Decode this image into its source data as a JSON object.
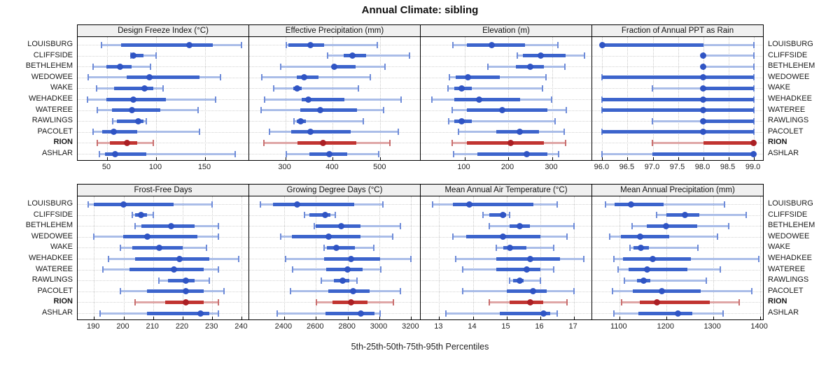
{
  "title": "Annual Climate: sibling",
  "footer": "5th-25th-50th-75th-95th Percentiles",
  "locations": [
    "LOUISBURG",
    "CLIFFSIDE",
    "BETHLEHEM",
    "WEDOWEE",
    "WAKE",
    "WEHADKEE",
    "WATEREE",
    "RAWLINGS",
    "PACOLET",
    "RION",
    "ASHLAR"
  ],
  "highlight_location": "RION",
  "colors": {
    "blue_light": "#aabde8",
    "blue_cap": "#6f8cd9",
    "blue_dark": "#3c64cc",
    "blue_dot": "#2f54c4",
    "red_light": "#dfa6a6",
    "red_cap": "#c96f6f",
    "red_dark": "#c13431",
    "red_dot": "#ab1f24",
    "grid": "#c9c9c9",
    "header_bg": "#f0f0f0",
    "border": "#000000",
    "text": "#1a1a1a"
  },
  "chart_data": [
    {
      "type": "percentile-interval",
      "row": 0,
      "col": 0,
      "title": "Design Freeze Index (°C)",
      "xlim": [
        20,
        195
      ],
      "ticks": [
        50,
        100,
        150
      ],
      "decimals": 0,
      "percentile_labels": [
        "5th",
        "25th",
        "50th",
        "75th",
        "95th"
      ],
      "values": [
        [
          44,
          64,
          134,
          158,
          187
        ],
        [
          74,
          76,
          77,
          87,
          100
        ],
        [
          36,
          49,
          63,
          75,
          94
        ],
        [
          31,
          70,
          93,
          144,
          166
        ],
        [
          39,
          57,
          88,
          97,
          107
        ],
        [
          30,
          49,
          77,
          110,
          161
        ],
        [
          40,
          55,
          75,
          104,
          143
        ],
        [
          56,
          60,
          82,
          87,
          90
        ],
        [
          36,
          45,
          57,
          81,
          144
        ],
        [
          40,
          53,
          70,
          81,
          97
        ],
        [
          42,
          48,
          58,
          90,
          181
        ]
      ]
    },
    {
      "type": "percentile-interval",
      "row": 0,
      "col": 1,
      "title": "Effective Precipitation (mm)",
      "xlim": [
        224,
        585
      ],
      "ticks": [
        300,
        400,
        500
      ],
      "decimals": 0,
      "percentile_labels": [
        "5th",
        "25th",
        "50th",
        "75th",
        "95th"
      ],
      "values": [
        [
          302,
          307,
          353,
          382,
          493
        ],
        [
          389,
          423,
          442,
          470,
          562
        ],
        [
          290,
          398,
          403,
          448,
          510
        ],
        [
          250,
          324,
          339,
          370,
          479
        ],
        [
          276,
          317,
          325,
          334,
          454
        ],
        [
          257,
          334,
          348,
          425,
          544
        ],
        [
          249,
          331,
          374,
          451,
          507
        ],
        [
          319,
          324,
          332,
          343,
          464
        ],
        [
          266,
          312,
          353,
          437,
          538
        ],
        [
          255,
          325,
          379,
          450,
          520
        ],
        [
          302,
          350,
          393,
          430,
          497
        ]
      ]
    },
    {
      "type": "percentile-interval",
      "row": 0,
      "col": 2,
      "title": "Elevation (m)",
      "xlim": [
        0,
        392
      ],
      "ticks": [
        100,
        200,
        300
      ],
      "decimals": 0,
      "percentile_labels": [
        "5th",
        "25th",
        "50th",
        "75th",
        "95th"
      ],
      "values": [
        [
          74,
          106,
          162,
          238,
          314
        ],
        [
          220,
          233,
          274,
          331,
          375
        ],
        [
          154,
          217,
          250,
          281,
          329
        ],
        [
          66,
          80,
          108,
          181,
          286
        ],
        [
          63,
          77,
          93,
          117,
          279
        ],
        [
          26,
          77,
          133,
          227,
          299
        ],
        [
          72,
          106,
          186,
          289,
          333
        ],
        [
          64,
          77,
          93,
          117,
          307
        ],
        [
          87,
          173,
          227,
          270,
          328
        ],
        [
          72,
          106,
          206,
          281,
          331
        ],
        [
          75,
          130,
          242,
          289,
          315
        ]
      ]
    },
    {
      "type": "percentile-interval",
      "row": 0,
      "col": 3,
      "title": "Fraction of Annual PPT as Rain",
      "xlim": [
        95.8,
        99.2
      ],
      "ticks": [
        96.0,
        96.5,
        97.0,
        97.5,
        98.0,
        98.5,
        99.0
      ],
      "decimals": 1,
      "percentile_labels": [
        "5th",
        "25th",
        "50th",
        "75th",
        "95th"
      ],
      "values": [
        [
          96,
          96,
          96,
          98,
          99
        ],
        [
          98,
          98,
          98,
          98,
          99
        ],
        [
          98,
          98,
          98,
          98,
          99
        ],
        [
          96,
          96,
          98,
          99,
          99
        ],
        [
          97,
          98,
          98,
          99,
          99
        ],
        [
          96,
          96,
          98,
          99,
          99
        ],
        [
          96,
          96,
          98,
          99,
          99
        ],
        [
          97,
          98,
          98,
          99,
          99
        ],
        [
          96,
          96,
          98,
          99,
          99
        ],
        [
          97,
          98,
          99,
          99,
          99
        ],
        [
          96,
          97,
          99,
          99,
          99
        ]
      ]
    },
    {
      "type": "percentile-interval",
      "row": 1,
      "col": 0,
      "title": "Frost-Free Days",
      "xlim": [
        184.5,
        242.5
      ],
      "ticks": [
        190,
        200,
        210,
        220,
        230,
        240
      ],
      "decimals": 0,
      "percentile_labels": [
        "5th",
        "25th",
        "50th",
        "75th",
        "95th"
      ],
      "values": [
        [
          188,
          190,
          200,
          217,
          230
        ],
        [
          203,
          204,
          206,
          208,
          210
        ],
        [
          204,
          206,
          216,
          224,
          232
        ],
        [
          190,
          200,
          208,
          225,
          232
        ],
        [
          199,
          203,
          212,
          220,
          228
        ],
        [
          195,
          204,
          219,
          229,
          239
        ],
        [
          193,
          202,
          217,
          227,
          232
        ],
        [
          212,
          215,
          221,
          224,
          229
        ],
        [
          199,
          208,
          221,
          227,
          234
        ],
        [
          204,
          214,
          221,
          227,
          232
        ],
        [
          192,
          208,
          226,
          229,
          232
        ]
      ]
    },
    {
      "type": "percentile-interval",
      "row": 1,
      "col": 1,
      "title": "Growing Degree Days (°C)",
      "xlim": [
        2180,
        3260
      ],
      "ticks": [
        2400,
        2600,
        2800,
        3000,
        3200
      ],
      "decimals": 0,
      "percentile_labels": [
        "5th",
        "25th",
        "50th",
        "75th",
        "95th"
      ],
      "values": [
        [
          2250,
          2330,
          2480,
          2840,
          3020
        ],
        [
          2530,
          2560,
          2660,
          2690,
          2720
        ],
        [
          2590,
          2600,
          2760,
          2880,
          3130
        ],
        [
          2380,
          2450,
          2680,
          2880,
          3085
        ],
        [
          2650,
          2670,
          2730,
          2845,
          2965
        ],
        [
          2410,
          2650,
          2820,
          3005,
          3200
        ],
        [
          2455,
          2665,
          2800,
          2895,
          3010
        ],
        [
          2635,
          2715,
          2770,
          2810,
          2860
        ],
        [
          2440,
          2680,
          2835,
          2940,
          3130
        ],
        [
          2605,
          2705,
          2820,
          2925,
          3090
        ],
        [
          2355,
          2660,
          2885,
          2970,
          3005
        ]
      ]
    },
    {
      "type": "percentile-interval",
      "row": 1,
      "col": 2,
      "title": "Mean Annual Air Temperature (°C)",
      "xlim": [
        12.45,
        17.55
      ],
      "ticks": [
        13,
        14,
        15,
        16,
        17
      ],
      "decimals": 0,
      "percentile_labels": [
        "5th",
        "25th",
        "50th",
        "75th",
        "95th"
      ],
      "values": [
        [
          12.8,
          13.4,
          13.9,
          15.8,
          16.5
        ],
        [
          14.3,
          14.5,
          14.9,
          15.0,
          15.1
        ],
        [
          14.5,
          15.1,
          15.4,
          15.7,
          17.0
        ],
        [
          13.4,
          13.8,
          14.9,
          16.0,
          16.8
        ],
        [
          14.7,
          14.9,
          15.1,
          15.6,
          16.4
        ],
        [
          13.5,
          14.7,
          15.7,
          16.6,
          17.3
        ],
        [
          13.7,
          14.7,
          15.6,
          16.0,
          16.4
        ],
        [
          15.1,
          15.2,
          15.4,
          15.5,
          16.0
        ],
        [
          13.7,
          15.0,
          15.8,
          16.2,
          17.0
        ],
        [
          14.5,
          15.1,
          15.7,
          16.1,
          16.8
        ],
        [
          13.2,
          14.8,
          16.1,
          16.3,
          16.5
        ]
      ]
    },
    {
      "type": "percentile-interval",
      "row": 1,
      "col": 3,
      "title": "Mean Annual Precipitation (mm)",
      "xlim": [
        1042,
        1408
      ],
      "ticks": [
        1100,
        1200,
        1300,
        1400
      ],
      "decimals": 0,
      "percentile_labels": [
        "5th",
        "25th",
        "50th",
        "75th",
        "95th"
      ],
      "values": [
        [
          1070,
          1090,
          1125,
          1195,
          1325
        ],
        [
          1180,
          1200,
          1240,
          1270,
          1370
        ],
        [
          1127,
          1158,
          1200,
          1266,
          1333
        ],
        [
          1080,
          1103,
          1144,
          1206,
          1310
        ],
        [
          1122,
          1130,
          1146,
          1163,
          1268
        ],
        [
          1089,
          1108,
          1171,
          1253,
          1397
        ],
        [
          1098,
          1120,
          1160,
          1245,
          1315
        ],
        [
          1111,
          1138,
          1152,
          1166,
          1286
        ],
        [
          1085,
          1128,
          1190,
          1274,
          1382
        ],
        [
          1105,
          1143,
          1180,
          1293,
          1355
        ],
        [
          1088,
          1141,
          1225,
          1255,
          1322
        ]
      ]
    }
  ]
}
